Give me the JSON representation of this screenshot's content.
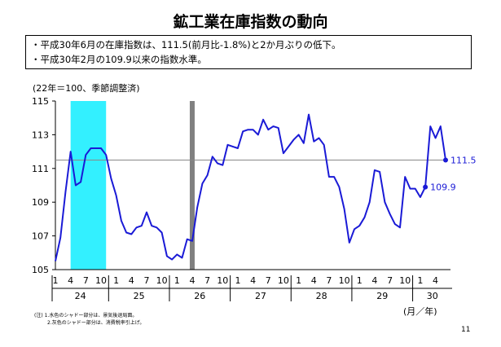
{
  "title": "鉱工業在庫指数の動向",
  "summary": [
    "・平成30年6月の在庫指数は、111.5(前月比-1.8%)と2か月ぶりの低下。",
    "・平成30年2月の109.9以来の指数水準。"
  ],
  "unit_note": "(22年＝100、季節調整済)",
  "unit_label": "(月／年)",
  "footnotes": [
    "(注) 1.水色のシャドー部分は、景気後退局面。",
    "2.灰色のシャドー部分は、消費税率引上げ。"
  ],
  "page_number": "11",
  "colors": {
    "line": "#1a1ad6",
    "recession_shade": "#33f0ff",
    "tax_shade": "#808080",
    "reference_line": "#888888"
  },
  "chart_data": {
    "type": "line",
    "ylim": [
      105,
      115
    ],
    "yticks": [
      105,
      107,
      109,
      111,
      113,
      115
    ],
    "xtick_months": [
      "1",
      "4",
      "7",
      "10",
      "1",
      "4",
      "7",
      "10",
      "1",
      "4",
      "7",
      "10",
      "1",
      "4",
      "7",
      "10",
      "1",
      "4",
      "7",
      "10",
      "1",
      "4",
      "7",
      "10",
      "1",
      "4"
    ],
    "year_labels": [
      "24",
      "25",
      "26",
      "27",
      "28",
      "29",
      "30"
    ],
    "x_start": "2012-01",
    "series": [
      {
        "values": [
          105.5,
          106.9,
          109.6,
          112.0,
          110.0,
          110.2,
          111.8,
          112.2,
          112.2,
          112.2,
          111.8,
          110.4,
          109.4,
          107.9,
          107.2,
          107.1,
          107.5,
          107.6,
          108.4,
          107.6,
          107.5,
          107.2,
          105.8,
          105.6,
          105.9,
          105.7,
          106.8,
          106.7,
          108.7,
          110.1,
          110.6,
          111.7,
          111.3,
          111.2,
          112.4,
          112.3,
          112.2,
          113.2,
          113.3,
          113.3,
          113.0,
          113.9,
          113.3,
          113.5,
          113.4,
          111.9,
          112.3,
          112.7,
          113.0,
          112.5,
          114.2,
          112.6,
          112.8,
          112.4,
          110.5,
          110.5,
          109.9,
          108.6,
          106.6,
          107.4,
          107.6,
          108.1,
          109.0,
          110.9,
          110.8,
          109.0,
          108.3,
          107.7,
          107.5,
          110.5,
          109.8,
          109.8,
          109.3,
          109.9,
          113.5,
          112.8,
          113.5,
          111.5
        ]
      }
    ],
    "reference_value": 111.5,
    "annotations": [
      {
        "label": "109.9",
        "x": "2018-02",
        "y": 109.9
      },
      {
        "label": "111.5",
        "x": "2018-06",
        "y": 111.5
      }
    ],
    "shaded_periods": [
      {
        "kind": "recession",
        "start": "2012-04",
        "end": "2012-11"
      },
      {
        "kind": "consumption-tax",
        "start": "2014-04",
        "end": "2014-04"
      }
    ]
  }
}
